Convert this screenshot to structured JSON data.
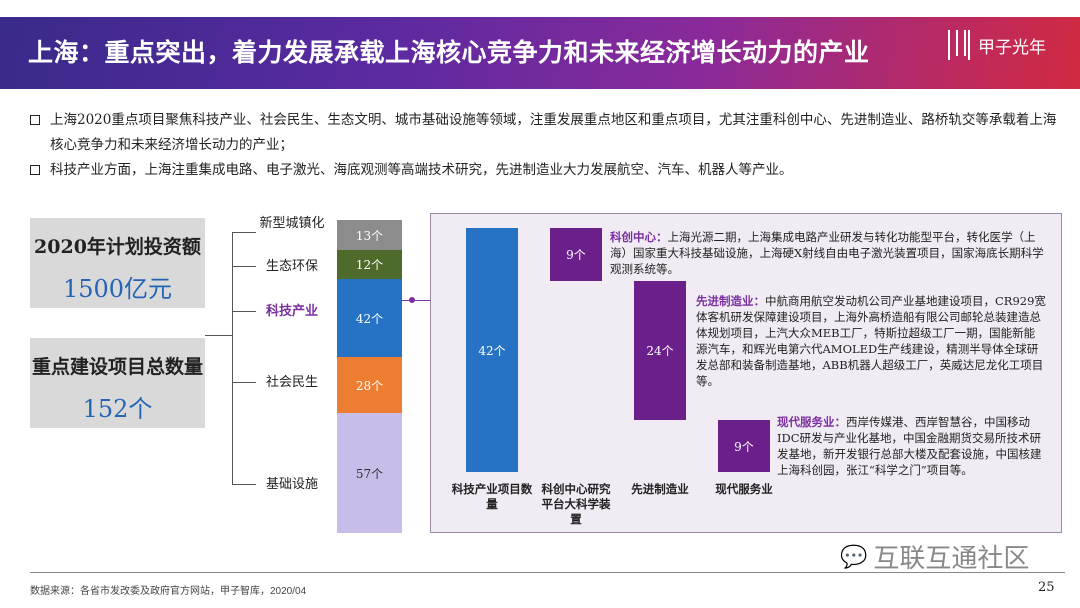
{
  "header": {
    "title": "上海：重点突出，着力发展承载上海核心竞争力和未来经济增长动力的产业",
    "logo": "甲子光年"
  },
  "bullets": [
    "上海2020重点项目聚焦科技产业、社会民生、生态文明、城市基础设施等领域，注重发展重点地区和重点项目，尤其注重科创中心、先进制造业、路桥轨交等承载着上海核心竞争力和未来经济增长动力的产业；",
    "科技产业方面，上海注重集成电路、电子激光、海底观测等高端技术研究，先进制造业大力发展航空、汽车、机器人等产业。"
  ],
  "summary": {
    "investment_label": "2020年计划投资额",
    "investment_value": "1500亿元",
    "count_label": "重点建设项目总数量",
    "count_value": "152个"
  },
  "categories": [
    {
      "name": "新型城镇化",
      "value": "13个",
      "color": "#8c8c8c"
    },
    {
      "name": "生态环保",
      "value": "12个",
      "color": "#4e6b2c"
    },
    {
      "name": "科技产业",
      "value": "42个",
      "color": "#2672c4"
    },
    {
      "name": "社会民生",
      "value": "28个",
      "color": "#ed7d31"
    },
    {
      "name": "基础设施",
      "value": "57个",
      "color": "#c7bde8"
    }
  ],
  "breakdown": {
    "total": {
      "value": "42个",
      "label": "科技产业项目数量"
    },
    "items": [
      {
        "value": "9个",
        "label": "科创中心研究平台大科学装置",
        "title": "科创中心：",
        "desc": "上海光源二期，上海集成电路产业研发与转化功能型平台，转化医学（上海）国家重大科技基础设施，上海硬X射线自由电子激光装置项目，国家海底长期科学观测系统等。"
      },
      {
        "value": "24个",
        "label": "先进制造业",
        "title": "先进制造业：",
        "desc": "中航商用航空发动机公司产业基地建设项目，CR929宽体客机研发保障建设项目，上海外高桥造船有限公司邮轮总装建造总体规划项目，上汽大众MEB工厂，特斯拉超级工厂一期，国能新能源汽车，和辉光电第六代AMOLED生产线建设，精测半导体全球研发总部和装备制造基地，ABB机器人超级工厂，英威达尼龙化工项目等。"
      },
      {
        "value": "9个",
        "label": "现代服务业",
        "title": "现代服务业：",
        "desc": "西岸传媒港、西岸智慧谷，中国移动IDC研发与产业化基地，中国金融期货交易所技术研发基地，新开发银行总部大楼及配套设施，中国核建上海科创园，张江“科学之门”项目等。"
      }
    ]
  },
  "footer": {
    "source": "数据来源：各省市发改委及政府官方网站，甲子智库，2020/04",
    "watermark": "互联互通社区",
    "page": "25"
  }
}
